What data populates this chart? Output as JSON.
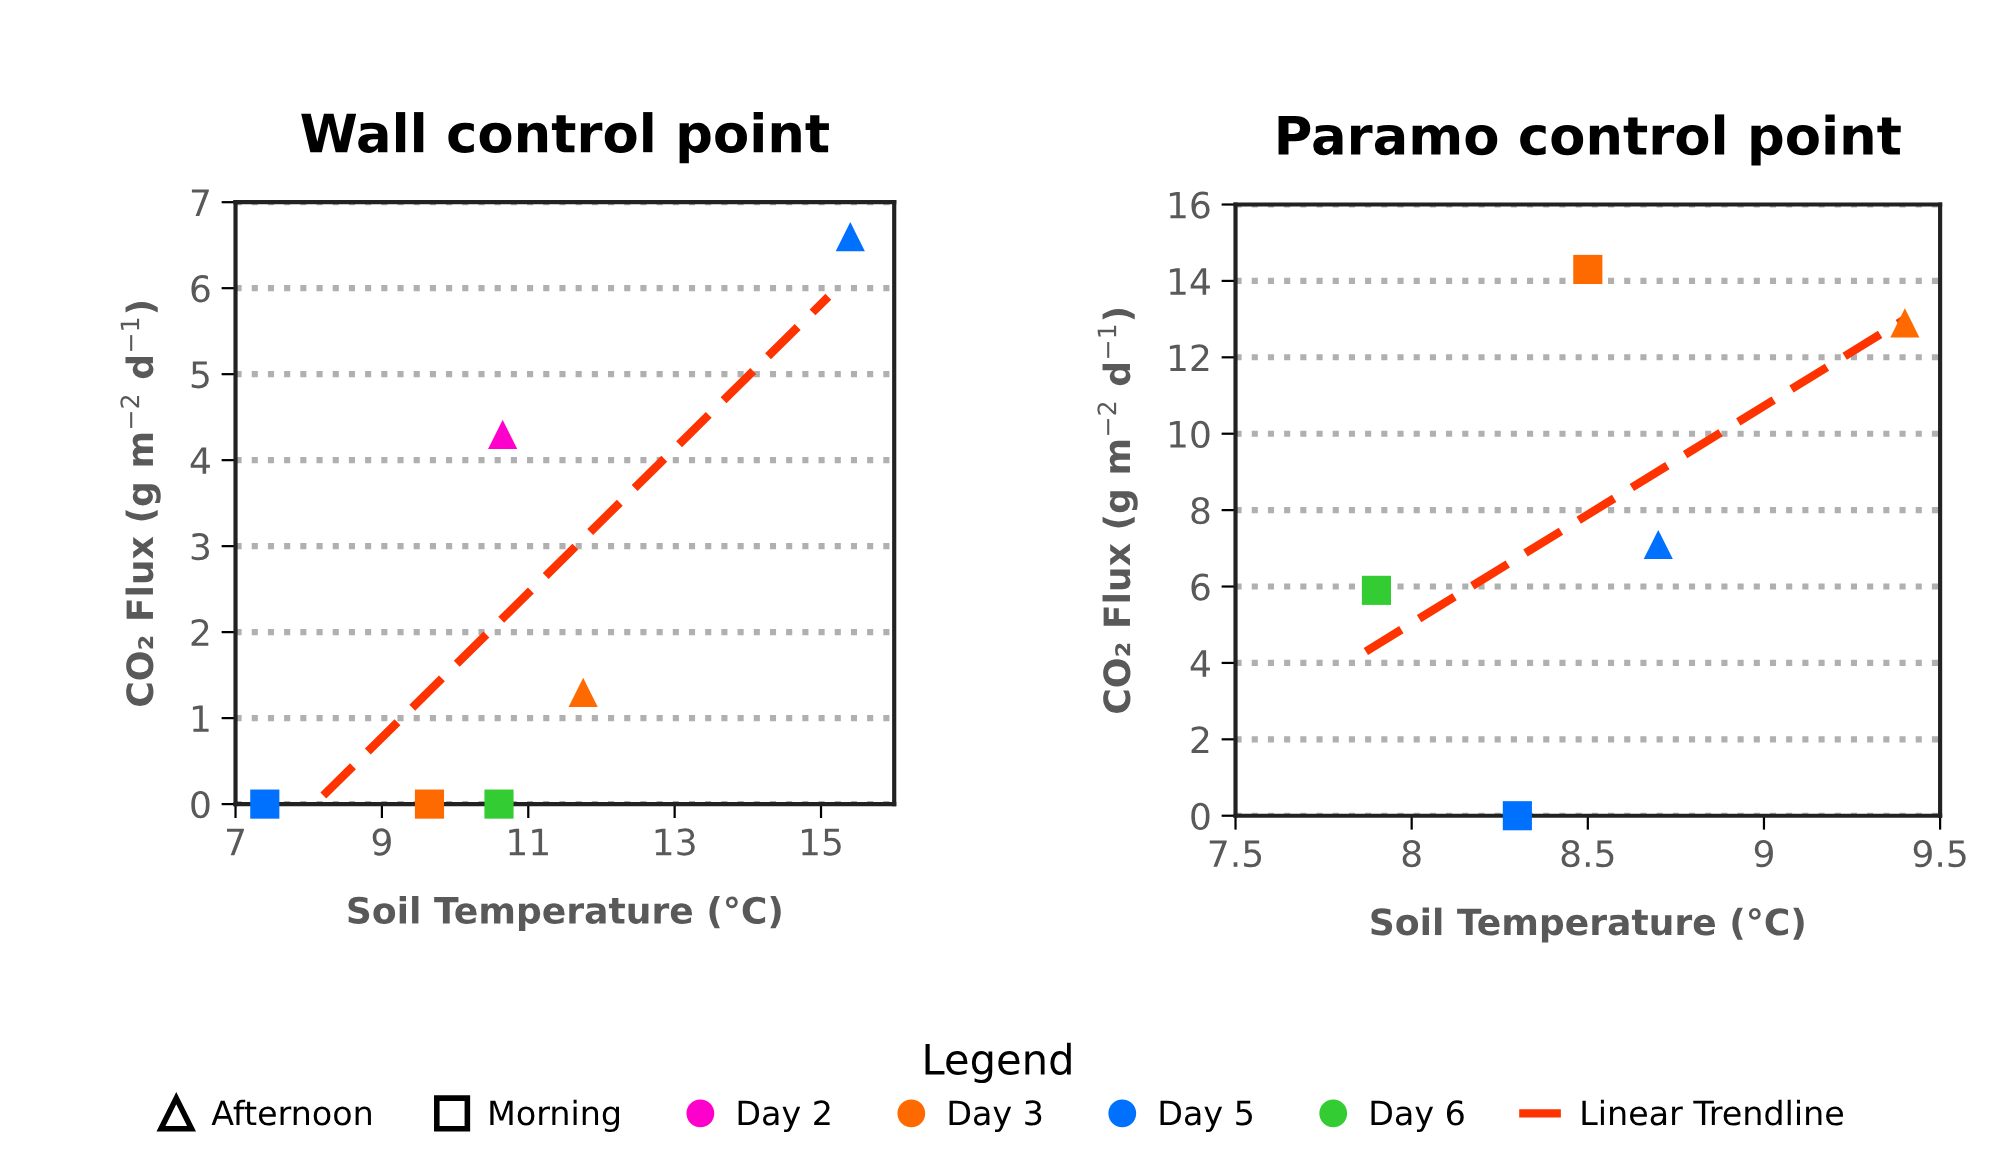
{
  "chart_data": [
    {
      "type": "scatter",
      "title": "Wall control point",
      "xlabel": "Soil Temperature (°C)",
      "ylabel": "CO₂ Flux (g m$^{−2}$ d$^{−1}$)",
      "legend_title": "Legend",
      "legend": "bottom",
      "grid": "y",
      "annotations": [
        "Afternoon",
        "Morning"
      ],
      "xlim": [
        7,
        16
      ],
      "xticks": [
        7,
        9,
        11,
        13,
        15
      ],
      "ylim": [
        0,
        7
      ],
      "yticks": [
        0,
        1,
        2,
        3,
        4,
        5,
        6,
        7
      ],
      "series": [
        {
          "name": "Day 2",
          "marker": "triangle",
          "color": "#ff00cc",
          "x": [
            10.65
          ],
          "values": [
            4.3
          ]
        },
        {
          "name": "Day 3",
          "marker": "triangle",
          "color": "#ff6a00",
          "x": [
            11.75
          ],
          "values": [
            1.3
          ]
        },
        {
          "marker": "square",
          "color": "#ff6a00",
          "x": [
            9.65
          ],
          "values": [
            0
          ]
        },
        {
          "name": "Day 5",
          "marker": "triangle",
          "color": "#0070ff",
          "x": [
            15.4
          ],
          "values": [
            6.6
          ]
        },
        {
          "marker": "square",
          "color": "#0070ff",
          "x": [
            7.4
          ],
          "values": [
            0
          ]
        },
        {
          "name": "Day 6",
          "marker": "square",
          "color": "#33cc33",
          "x": [
            10.6
          ],
          "values": [
            0
          ]
        },
        {
          "name": "Linear Trendline",
          "type": "line",
          "line_style": "dashed",
          "color": "#ff3300",
          "x": [
            8.2,
            15.1
          ],
          "values": [
            0.1,
            5.9
          ]
        }
      ]
    },
    {
      "type": "scatter",
      "title": "Paramo control point",
      "xlabel": "Soil Temperature (°C)",
      "ylabel": "CO₂ Flux (g m$^{−2}$ d$^{−1}$)",
      "grid": "y",
      "xlim": [
        7.5,
        9.5
      ],
      "xticks": [
        7.5,
        8,
        8.5,
        9,
        9.5
      ],
      "ylim": [
        0,
        16
      ],
      "yticks": [
        0,
        2,
        4,
        6,
        8,
        10,
        12,
        14,
        16
      ],
      "series": [
        {
          "marker": "triangle",
          "color": "#ff6a00",
          "x": [
            9.4
          ],
          "values": [
            12.9
          ]
        },
        {
          "marker": "square",
          "color": "#ff6a00",
          "x": [
            8.5
          ],
          "values": [
            14.3
          ]
        },
        {
          "marker": "triangle",
          "color": "#0070ff",
          "x": [
            8.7
          ],
          "values": [
            7.1
          ]
        },
        {
          "marker": "square",
          "color": "#0070ff",
          "x": [
            8.3
          ],
          "values": [
            0
          ]
        },
        {
          "marker": "square",
          "color": "#33cc33",
          "x": [
            7.9
          ],
          "values": [
            5.9
          ]
        },
        {
          "type": "line",
          "line_style": "dashed",
          "color": "#ff3300",
          "x": [
            7.87,
            9.4
          ],
          "values": [
            4.3,
            13.0
          ]
        }
      ]
    }
  ]
}
